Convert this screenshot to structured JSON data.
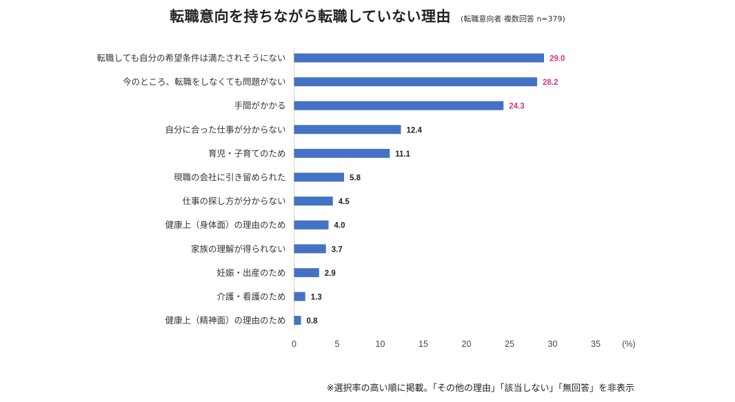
{
  "header": {
    "title": "転職意向を持ちながら転職していない理由",
    "subtitle": "(転職意向者 複数回答 n=379)"
  },
  "chart_data": {
    "type": "bar",
    "orientation": "horizontal",
    "title": "転職意向を持ちながら転職していない理由",
    "categories": [
      "転職しても自分の希望条件は満たされそうにない",
      "今のところ、転職をしなくても問題がない",
      "手間がかかる",
      "自分に合った仕事が分からない",
      "育児・子育てのため",
      "現職の会社に引き留められた",
      "仕事の探し方が分からない",
      "健康上（身体面）の理由のため",
      "家族の理解が得られない",
      "妊娠・出産のため",
      "介護・看護のため",
      "健康上（精神面）の理由のため"
    ],
    "values": [
      29.0,
      28.2,
      24.3,
      12.4,
      11.1,
      5.8,
      4.5,
      4.0,
      3.7,
      2.9,
      1.3,
      0.8
    ],
    "value_labels": [
      "29.0",
      "28.2",
      "24.3",
      "12.4",
      "11.1",
      "5.8",
      "4.5",
      "4.0",
      "3.7",
      "2.9",
      "1.3",
      "0.8"
    ],
    "highlight_count": 3,
    "xlim": [
      0,
      35
    ],
    "xticks": [
      0,
      5,
      10,
      15,
      20,
      25,
      30,
      35
    ],
    "xtick_labels": [
      "0",
      "5",
      "10",
      "15",
      "20",
      "25",
      "30",
      "35"
    ],
    "unit_label": "(%)",
    "xlabel": "",
    "ylabel": "",
    "grid": false,
    "bar_color": "#4472c4",
    "highlight_color": "#d63384",
    "default_label_color": "#222222"
  },
  "footnote": "※選択率の高い順に掲載。「その他の理由」「該当しない」「無回答」を非表示"
}
